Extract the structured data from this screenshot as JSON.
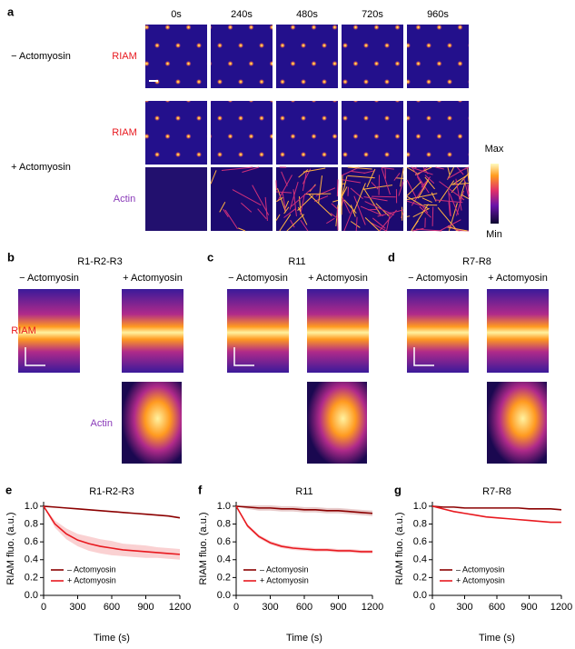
{
  "panel_a": {
    "label": "a",
    "times": [
      "0s",
      "240s",
      "480s",
      "720s",
      "960s"
    ],
    "row_labels": [
      "− Actomyosin",
      "+ Actomyosin"
    ],
    "channel_labels": [
      "RIAM",
      "RIAM",
      "Actin"
    ],
    "colorbar": {
      "max": "Max",
      "min": "Min"
    }
  },
  "kymographs": [
    {
      "label": "b",
      "title": "R1-R2-R3",
      "conditions": [
        "− Actomyosin",
        "+ Actomyosin"
      ]
    },
    {
      "label": "c",
      "title": "R11",
      "conditions": [
        "− Actomyosin",
        "+ Actomyosin"
      ]
    },
    {
      "label": "d",
      "title": "R7-R8",
      "conditions": [
        "− Actomyosin",
        "+ Actomyosin"
      ]
    }
  ],
  "kymo_channels": [
    "RIAM",
    "Actin"
  ],
  "chart_data": [
    {
      "type": "line",
      "panel_label": "e",
      "title": "R1-R2-R3",
      "xlabel": "Time (s)",
      "ylabel": "RIAM fluo. (a.u.)",
      "x": [
        0,
        100,
        200,
        300,
        400,
        500,
        600,
        700,
        800,
        900,
        1000,
        1100,
        1200
      ],
      "series": [
        {
          "name": "– Actomyosin",
          "color": "#8b0000",
          "values": [
            1.0,
            0.99,
            0.98,
            0.97,
            0.96,
            0.95,
            0.94,
            0.93,
            0.92,
            0.91,
            0.9,
            0.89,
            0.87
          ]
        },
        {
          "name": "+ Actomyosin",
          "color": "#e8191f",
          "values": [
            1.0,
            0.8,
            0.69,
            0.62,
            0.58,
            0.55,
            0.53,
            0.51,
            0.5,
            0.49,
            0.48,
            0.47,
            0.46
          ],
          "error": [
            0,
            0.04,
            0.06,
            0.07,
            0.08,
            0.08,
            0.08,
            0.07,
            0.07,
            0.07,
            0.06,
            0.06,
            0.06
          ]
        }
      ],
      "xlim": [
        0,
        1200
      ],
      "xticks": [
        0,
        300,
        600,
        900,
        1200
      ],
      "ylim": [
        0,
        1.05
      ],
      "yticks": [
        {
          "value": 0,
          "label": "0.0"
        },
        0.2,
        0.4,
        0.6,
        0.8,
        {
          "value": 1,
          "label": "1.0"
        }
      ]
    },
    {
      "type": "line",
      "panel_label": "f",
      "title": "R11",
      "xlabel": "Time (s)",
      "ylabel": "RIAM fluo. (a.u.)",
      "x": [
        0,
        100,
        200,
        300,
        400,
        500,
        600,
        700,
        800,
        900,
        1000,
        1100,
        1200
      ],
      "series": [
        {
          "name": "– Actomyosin",
          "color": "#8b0000",
          "values": [
            1.0,
            0.99,
            0.98,
            0.98,
            0.97,
            0.97,
            0.96,
            0.96,
            0.95,
            0.95,
            0.94,
            0.93,
            0.92
          ],
          "error": [
            0,
            0.02,
            0.03,
            0.03,
            0.03,
            0.03,
            0.03,
            0.03,
            0.03,
            0.03,
            0.03,
            0.03,
            0.03
          ]
        },
        {
          "name": "+ Actomyosin",
          "color": "#e8191f",
          "values": [
            1.0,
            0.78,
            0.66,
            0.59,
            0.55,
            0.53,
            0.52,
            0.51,
            0.51,
            0.5,
            0.5,
            0.49,
            0.49
          ],
          "error": [
            0,
            0.02,
            0.02,
            0.02,
            0.02,
            0.02,
            0.02,
            0.02,
            0.02,
            0.02,
            0.02,
            0.02,
            0.02
          ]
        }
      ],
      "xlim": [
        0,
        1200
      ],
      "xticks": [
        0,
        300,
        600,
        900,
        1200
      ],
      "ylim": [
        0,
        1.05
      ],
      "yticks": [
        {
          "value": 0,
          "label": "0.0"
        },
        0.2,
        0.4,
        0.6,
        0.8,
        {
          "value": 1,
          "label": "1.0"
        }
      ]
    },
    {
      "type": "line",
      "panel_label": "g",
      "title": "R7-R8",
      "xlabel": "Time (s)",
      "ylabel": "RIAM fluo. (a.u.)",
      "x": [
        0,
        100,
        200,
        300,
        400,
        500,
        600,
        700,
        800,
        900,
        1000,
        1100,
        1200
      ],
      "series": [
        {
          "name": "– Actomyosin",
          "color": "#8b0000",
          "values": [
            1.0,
            0.99,
            0.99,
            0.98,
            0.98,
            0.98,
            0.98,
            0.98,
            0.98,
            0.97,
            0.97,
            0.97,
            0.96
          ]
        },
        {
          "name": "+ Actomyosin",
          "color": "#e8191f",
          "values": [
            1.0,
            0.97,
            0.94,
            0.92,
            0.9,
            0.88,
            0.87,
            0.86,
            0.85,
            0.84,
            0.83,
            0.82,
            0.82
          ]
        }
      ],
      "xlim": [
        0,
        1200
      ],
      "xticks": [
        0,
        300,
        600,
        900,
        1200
      ],
      "ylim": [
        0,
        1.05
      ],
      "yticks": [
        {
          "value": 0,
          "label": "0.0"
        },
        0.2,
        0.4,
        0.6,
        0.8,
        {
          "value": 1,
          "label": "1.0"
        }
      ]
    }
  ]
}
